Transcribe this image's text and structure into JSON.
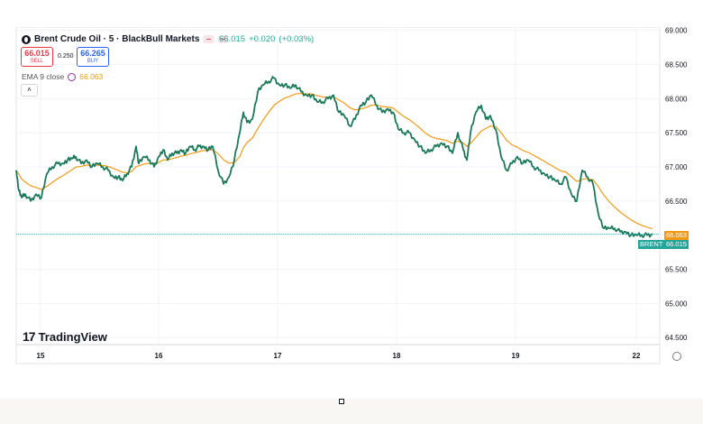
{
  "header": {
    "title": "Brent Crude Oil · 5 · BlackBull Markets",
    "last": "66.015",
    "change": "+0.020",
    "change_pct": "(+0.03%)"
  },
  "trade": {
    "sell_price": "66.015",
    "sell_label": "SELL",
    "spread": "0.250",
    "buy_price": "66.265",
    "buy_label": "BUY"
  },
  "indicator": {
    "name": "EMA 9 close",
    "value": "66.063"
  },
  "branding": {
    "logo_mark": "17",
    "logo_text": "TradingView"
  },
  "price_tags": {
    "ema_tag": "66.063",
    "symbol_tag": "BRENT",
    "last_tag": "66.015"
  },
  "colors": {
    "price_line": "#1a7a5a",
    "ema_line": "#f39a12",
    "last_tag": "#26a69a",
    "ema_tag": "#f39a12",
    "grid": "#f0f3fa",
    "axis_text": "#131722"
  },
  "icons": [
    "logo-icon",
    "settings-icon",
    "chevron-up-icon",
    "ema-visibility-icon"
  ],
  "chart_data": {
    "type": "line",
    "x_tick_labels": [
      "15",
      "16",
      "17",
      "18",
      "19",
      "22"
    ],
    "y_tick_labels": [
      "64.500",
      "65.000",
      "65.500",
      "66.000",
      "66.500",
      "67.000",
      "67.500",
      "68.000",
      "68.500",
      "69.000"
    ],
    "ylim": [
      64.45,
      69.1
    ],
    "grid": true,
    "x": [
      0,
      3,
      6,
      10,
      16,
      22,
      28,
      34,
      40,
      46,
      52,
      57,
      62,
      66,
      72,
      78,
      84,
      90,
      96,
      102,
      108,
      113,
      118,
      123,
      128,
      133,
      136,
      142,
      148,
      153,
      158,
      163,
      168,
      173,
      178,
      183,
      188,
      193,
      198,
      203,
      208,
      213,
      218,
      224,
      230,
      236,
      242,
      248,
      252,
      256,
      262,
      268,
      274,
      280,
      286,
      292,
      298,
      304,
      310,
      316,
      322,
      328,
      334,
      340,
      346,
      352,
      358,
      364,
      370,
      376,
      382,
      388,
      394,
      400,
      406,
      412,
      418,
      424,
      430,
      436,
      442,
      448,
      454,
      460,
      466,
      472,
      478,
      484,
      490,
      496,
      500,
      504,
      510,
      516,
      521,
      526,
      532,
      538,
      544,
      550,
      556,
      562,
      568,
      574,
      580,
      586,
      592,
      598,
      604,
      610,
      616,
      622,
      628,
      634,
      640,
      646,
      652,
      658,
      664,
      670,
      676,
      682,
      688,
      694,
      700,
      706
    ],
    "series": [
      {
        "values": [
          66.95,
          66.65,
          66.55,
          66.6,
          66.5,
          66.6,
          66.55,
          66.9,
          67.0,
          67.05,
          67.05,
          67.1,
          67.12,
          67.15,
          67.05,
          67.1,
          67.0,
          67.05,
          67.0,
          66.95,
          66.85,
          66.85,
          66.8,
          66.9,
          67.0,
          67.3,
          67.05,
          67.15,
          67.1,
          67.0,
          67.15,
          67.25,
          67.1,
          67.2,
          67.2,
          67.25,
          67.2,
          67.3,
          67.25,
          67.3,
          67.3,
          67.25,
          67.3,
          66.95,
          66.75,
          66.85,
          67.1,
          67.5,
          67.8,
          67.65,
          67.7,
          68.1,
          68.2,
          68.25,
          68.3,
          68.2,
          68.2,
          68.15,
          68.2,
          68.1,
          68.05,
          68.05,
          67.95,
          67.95,
          68.0,
          68.05,
          67.8,
          67.75,
          67.6,
          67.7,
          67.9,
          67.95,
          68.05,
          67.9,
          67.8,
          67.85,
          67.8,
          67.55,
          67.5,
          67.5,
          67.4,
          67.3,
          67.2,
          67.25,
          67.3,
          67.35,
          67.3,
          67.2,
          67.5,
          67.25,
          67.1,
          67.5,
          67.8,
          67.9,
          67.7,
          67.75,
          67.55,
          67.15,
          66.95,
          67.05,
          67.15,
          67.05,
          67.1,
          67.0,
          66.95,
          66.9,
          66.85,
          66.8,
          66.75,
          66.85,
          66.6,
          66.5,
          66.95,
          66.85,
          66.75,
          66.3,
          66.1,
          66.1,
          66.1,
          66.05,
          66.05,
          66.0,
          66.0,
          66.0,
          66.0,
          66.015
        ]
      }
    ]
  }
}
